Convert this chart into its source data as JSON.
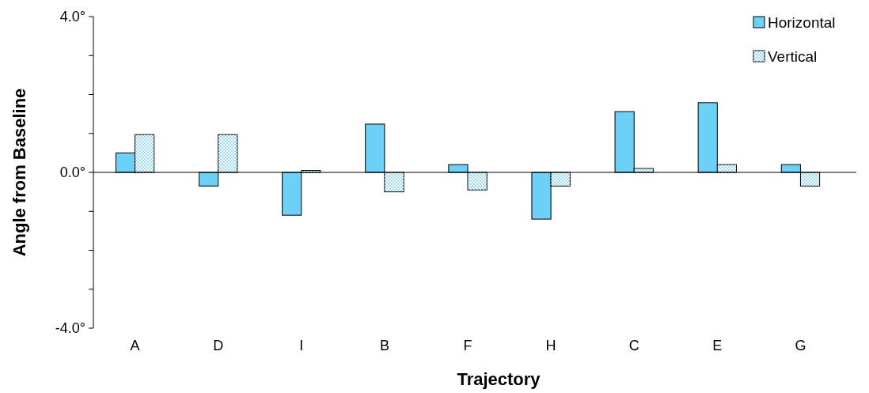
{
  "chart_data": {
    "type": "bar",
    "xlabel": "Trajectory",
    "ylabel": "Angle from Baseline",
    "categories": [
      "A",
      "D",
      "I",
      "B",
      "F",
      "H",
      "C",
      "E",
      "G"
    ],
    "series": [
      {
        "name": "Horizontal",
        "color": "#6dd0f7",
        "values": [
          0.5,
          -0.35,
          -1.1,
          1.24,
          0.2,
          -1.2,
          1.56,
          1.79,
          0.2
        ]
      },
      {
        "name": "Vertical",
        "color": "#9fdcf5",
        "values": [
          0.97,
          0.97,
          0.05,
          -0.5,
          -0.45,
          -0.35,
          0.1,
          0.2,
          -0.35
        ]
      }
    ],
    "ylim": [
      -4,
      4
    ],
    "yticks": [
      {
        "value": -4,
        "label": "-4.0°"
      },
      {
        "value": -3,
        "label": null
      },
      {
        "value": -2,
        "label": null
      },
      {
        "value": -1,
        "label": null
      },
      {
        "value": 0,
        "label": "0.0°"
      },
      {
        "value": 1,
        "label": null
      },
      {
        "value": 2,
        "label": null
      },
      {
        "value": 3,
        "label": null
      },
      {
        "value": 4,
        "label": "4.0°"
      }
    ],
    "legend": "top right"
  }
}
